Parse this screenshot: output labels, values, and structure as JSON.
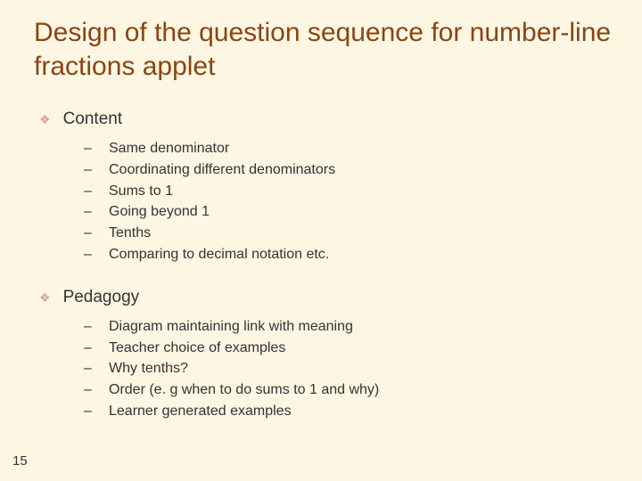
{
  "slide": {
    "title": "Design of the question sequence for number-line fractions applet",
    "slide_number": "15",
    "background_color": "#fdf6e3",
    "title_color": "#8b4513",
    "text_color": "#333333",
    "diamond_color": "#d4a5a5",
    "title_fontsize": 30,
    "section_title_fontsize": 19,
    "body_fontsize": 16
  },
  "sections": [
    {
      "title": "Content",
      "items": [
        "Same denominator",
        "Coordinating different denominators",
        "Sums to 1",
        "Going beyond 1",
        "Tenths",
        "Comparing to decimal notation etc."
      ]
    },
    {
      "title": "Pedagogy",
      "items": [
        "Diagram maintaining link with meaning",
        "Teacher choice of examples",
        "Why tenths?",
        "Order (e. g when to do sums to 1 and why)",
        "Learner generated examples"
      ]
    }
  ]
}
